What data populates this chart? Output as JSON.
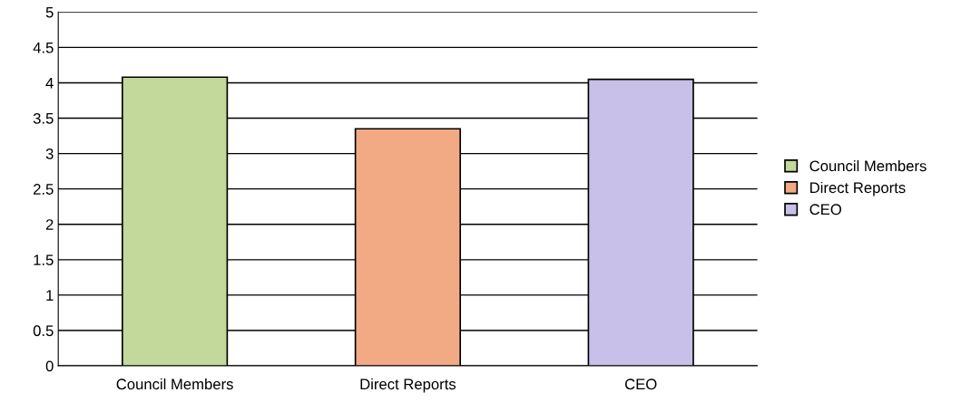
{
  "chart_data": {
    "type": "bar",
    "categories": [
      "Council Members",
      "Direct Reports",
      "CEO"
    ],
    "series": [
      {
        "name": "Council Members",
        "color": "#c3d89b",
        "values": [
          4.08,
          null,
          null
        ]
      },
      {
        "name": "Direct Reports",
        "color": "#f2aa84",
        "values": [
          null,
          3.35,
          null
        ]
      },
      {
        "name": "CEO",
        "color": "#c8c0e8",
        "values": [
          null,
          null,
          4.05
        ]
      }
    ],
    "ylim": [
      0,
      5
    ],
    "yticks": [
      0,
      0.5,
      1,
      1.5,
      2,
      2.5,
      3,
      3.5,
      4,
      4.5,
      5
    ],
    "grid": "y",
    "legend": "right"
  }
}
